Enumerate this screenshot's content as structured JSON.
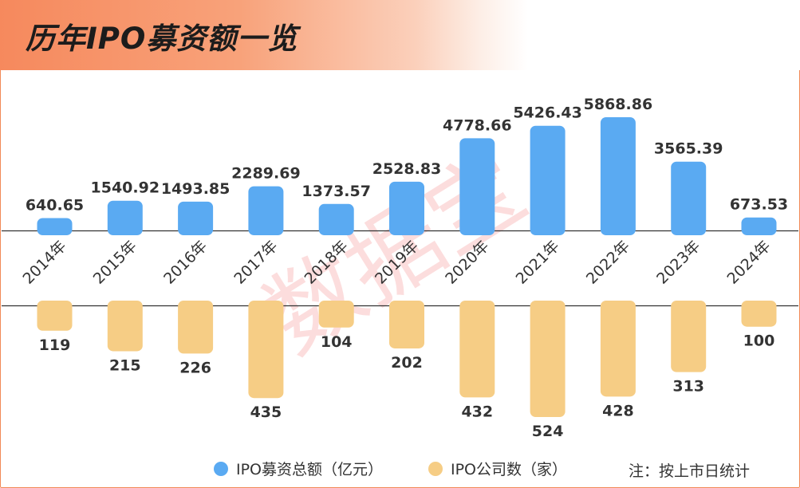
{
  "title": "历年IPO募资额一览",
  "watermark": "数据宝",
  "note": "注：按上市日统计",
  "colors": {
    "amount": "#5aaaf2",
    "count": "#f6cd85",
    "title_accent": "#f6895d",
    "watermark": "#f6a5a5"
  },
  "legend": [
    {
      "label": "IPO募资总额（亿元）",
      "color": "#5aaaf2",
      "icon": "circle-icon"
    },
    {
      "label": "IPO公司数（家）",
      "color": "#f6cd85",
      "icon": "circle-icon"
    }
  ],
  "chart_data": {
    "type": "bar",
    "categories": [
      "2014年",
      "2015年",
      "2016年",
      "2017年",
      "2018年",
      "2019年",
      "2020年",
      "2021年",
      "2022年",
      "2023年",
      "2024年"
    ],
    "series": [
      {
        "name": "IPO募资总额（亿元）",
        "values": [
          640.65,
          1540.92,
          1493.85,
          2289.69,
          1373.57,
          2528.83,
          4778.66,
          5426.43,
          5868.86,
          3565.39,
          673.53
        ],
        "labels": [
          "640.65",
          "1540.92",
          "1493.85",
          "2289.69",
          "1373.57",
          "2528.83",
          "4778.66",
          "5426.43",
          "5868.86",
          "3565.39",
          "673.53"
        ]
      },
      {
        "name": "IPO公司数（家）",
        "values": [
          119,
          215,
          226,
          435,
          104,
          202,
          432,
          524,
          428,
          313,
          100
        ],
        "labels": [
          "119",
          "215",
          "226",
          "435",
          "104",
          "202",
          "432",
          "524",
          "428",
          "313",
          "100"
        ]
      }
    ],
    "title": "历年IPO募资额一览",
    "xlabel": "",
    "ylabel": "",
    "legend_position": "bottom",
    "grid": false
  }
}
